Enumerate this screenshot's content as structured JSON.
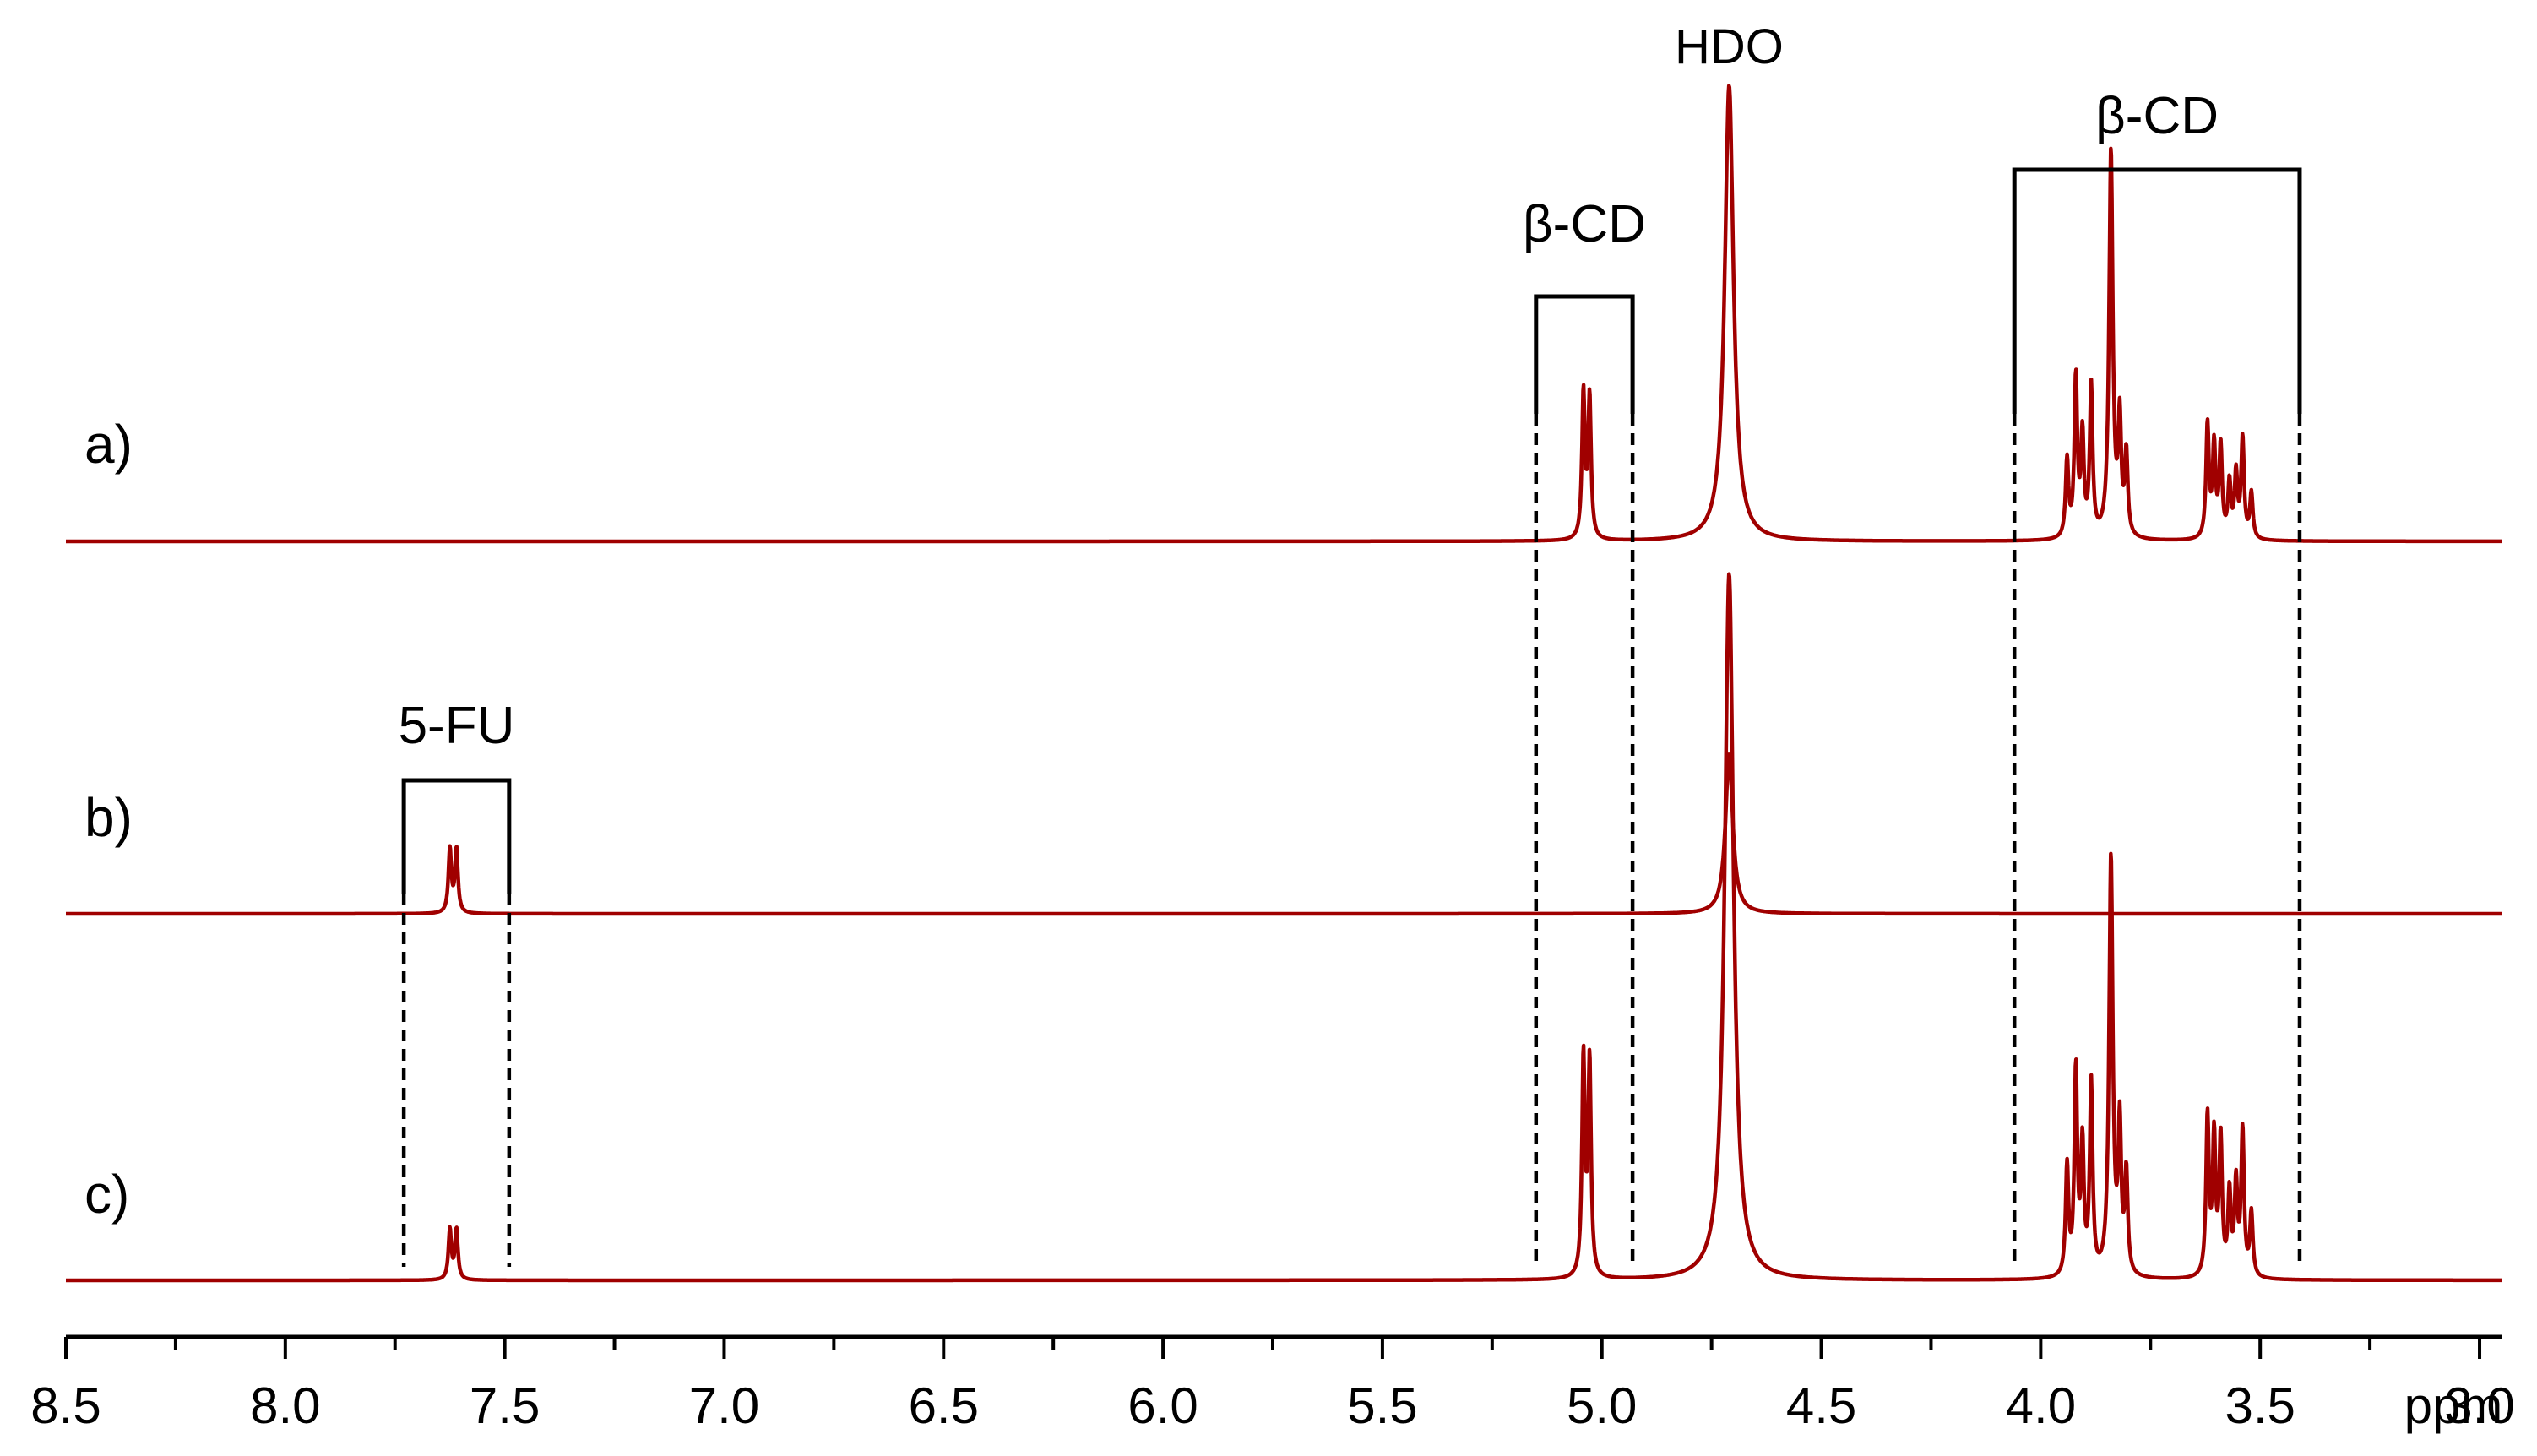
{
  "chart_data": {
    "type": "line",
    "title": "",
    "xlabel": "ppm",
    "ylabel": "",
    "xlim": [
      8.5,
      2.95
    ],
    "x_reversed": true,
    "grid": false,
    "line_color": "#a00000",
    "x_ticks": [
      "8.5",
      "8.0",
      "7.5",
      "7.0",
      "6.5",
      "6.0",
      "5.5",
      "5.0",
      "4.5",
      "4.0",
      "3.5",
      "3.0"
    ],
    "series": [
      {
        "name": "a)",
        "peaks": [
          {
            "ppm": 5.042,
            "height": 0.32,
            "width": 0.004
          },
          {
            "ppm": 5.028,
            "height": 0.31,
            "width": 0.004
          },
          {
            "ppm": 4.71,
            "height": 1.0,
            "width": 0.012
          },
          {
            "ppm": 3.94,
            "height": 0.17,
            "width": 0.004
          },
          {
            "ppm": 3.92,
            "height": 0.35,
            "width": 0.004
          },
          {
            "ppm": 3.905,
            "height": 0.22,
            "width": 0.004
          },
          {
            "ppm": 3.885,
            "height": 0.33,
            "width": 0.004
          },
          {
            "ppm": 3.84,
            "height": 0.85,
            "width": 0.005
          },
          {
            "ppm": 3.82,
            "height": 0.25,
            "width": 0.004
          },
          {
            "ppm": 3.805,
            "height": 0.18,
            "width": 0.004
          },
          {
            "ppm": 3.62,
            "height": 0.25,
            "width": 0.004
          },
          {
            "ppm": 3.605,
            "height": 0.2,
            "width": 0.004
          },
          {
            "ppm": 3.59,
            "height": 0.2,
            "width": 0.004
          },
          {
            "ppm": 3.57,
            "height": 0.12,
            "width": 0.004
          },
          {
            "ppm": 3.555,
            "height": 0.14,
            "width": 0.004
          },
          {
            "ppm": 3.54,
            "height": 0.22,
            "width": 0.004
          },
          {
            "ppm": 3.52,
            "height": 0.1,
            "width": 0.004
          }
        ]
      },
      {
        "name": "b)",
        "peaks": [
          {
            "ppm": 7.625,
            "height": 0.14,
            "width": 0.004
          },
          {
            "ppm": 7.61,
            "height": 0.14,
            "width": 0.004
          },
          {
            "ppm": 4.71,
            "height": 0.35,
            "width": 0.01
          }
        ]
      },
      {
        "name": "c)",
        "peaks": [
          {
            "ppm": 7.625,
            "height": 0.11,
            "width": 0.004
          },
          {
            "ppm": 7.61,
            "height": 0.11,
            "width": 0.004
          },
          {
            "ppm": 5.042,
            "height": 0.48,
            "width": 0.004
          },
          {
            "ppm": 5.028,
            "height": 0.47,
            "width": 0.004
          },
          {
            "ppm": 4.71,
            "height": 1.55,
            "width": 0.012
          },
          {
            "ppm": 3.94,
            "height": 0.24,
            "width": 0.004
          },
          {
            "ppm": 3.92,
            "height": 0.45,
            "width": 0.004
          },
          {
            "ppm": 3.905,
            "height": 0.28,
            "width": 0.004
          },
          {
            "ppm": 3.885,
            "height": 0.42,
            "width": 0.004
          },
          {
            "ppm": 3.84,
            "height": 0.92,
            "width": 0.005
          },
          {
            "ppm": 3.82,
            "height": 0.32,
            "width": 0.004
          },
          {
            "ppm": 3.805,
            "height": 0.22,
            "width": 0.004
          },
          {
            "ppm": 3.62,
            "height": 0.35,
            "width": 0.004
          },
          {
            "ppm": 3.605,
            "height": 0.3,
            "width": 0.004
          },
          {
            "ppm": 3.59,
            "height": 0.3,
            "width": 0.004
          },
          {
            "ppm": 3.57,
            "height": 0.18,
            "width": 0.004
          },
          {
            "ppm": 3.555,
            "height": 0.2,
            "width": 0.004
          },
          {
            "ppm": 3.54,
            "height": 0.32,
            "width": 0.004
          },
          {
            "ppm": 3.52,
            "height": 0.14,
            "width": 0.004
          }
        ]
      }
    ],
    "annotations": [
      {
        "text": "HDO",
        "ppm": 4.71
      },
      {
        "text": "β-CD",
        "ppm_range": [
          5.15,
          4.93
        ]
      },
      {
        "text": "β-CD",
        "ppm_range": [
          4.06,
          3.41
        ]
      },
      {
        "text": "5-FU",
        "ppm_range": [
          7.73,
          7.49
        ]
      }
    ]
  }
}
